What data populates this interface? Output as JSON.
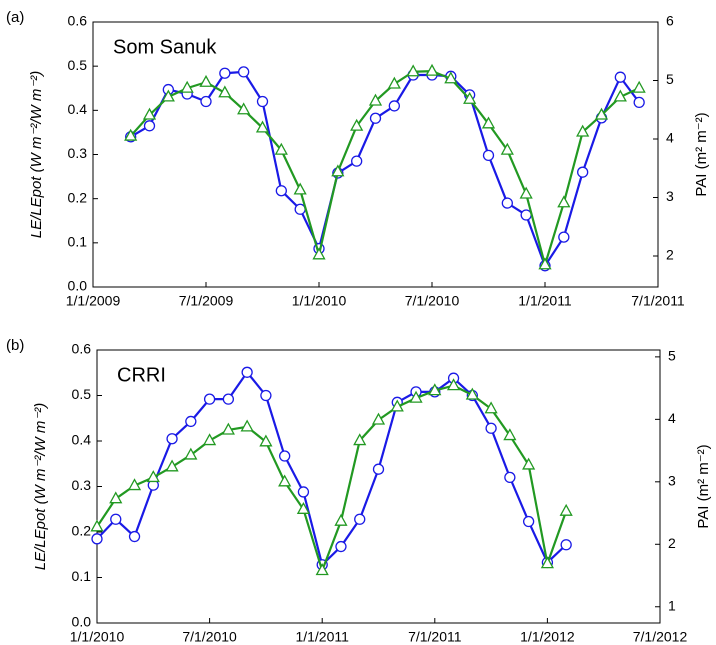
{
  "chart_data": [
    {
      "type": "line",
      "panel_label": "(a)",
      "annotation": "Som Sanuk",
      "y_label": "LE/LEpot (W m⁻²/W m⁻²)",
      "y2_label": "PAI (m² m⁻²)",
      "x": [
        "3/1/2009",
        "4/1/2009",
        "5/1/2009",
        "6/1/2009",
        "7/1/2009",
        "8/1/2009",
        "9/1/2009",
        "10/1/2009",
        "11/1/2009",
        "12/1/2009",
        "1/1/2010",
        "2/1/2010",
        "3/1/2010",
        "4/1/2010",
        "5/1/2010",
        "6/1/2010",
        "7/1/2010",
        "8/1/2010",
        "9/1/2010",
        "10/1/2010",
        "11/1/2010",
        "12/1/2010",
        "1/1/2011",
        "2/1/2011",
        "3/1/2011",
        "4/1/2011",
        "5/1/2011",
        "6/1/2011"
      ],
      "xlim": [
        "1/1/2009",
        "7/1/2011"
      ],
      "xticks": [
        "1/1/2009",
        "7/1/2009",
        "1/1/2010",
        "7/1/2010",
        "1/1/2011",
        "7/1/2011"
      ],
      "ylim": [
        0,
        0.6
      ],
      "yticks": [
        {
          "value": 0,
          "label": "0.0"
        },
        0.1,
        0.2,
        0.3,
        0.4,
        0.5,
        0.6
      ],
      "y2lim": [
        1.47,
        6
      ],
      "y2ticks": [
        2,
        3,
        4,
        5,
        6
      ],
      "series": [
        {
          "color": "#1a1ae6",
          "marker": "circle",
          "values": [
            0.34,
            0.365,
            0.447,
            0.437,
            0.42,
            0.484,
            0.487,
            0.42,
            0.218,
            0.176,
            0.087,
            0.258,
            0.285,
            0.382,
            0.41,
            0.48,
            0.48,
            0.477,
            0.435,
            0.298,
            0.19,
            0.163,
            0.048,
            0.113,
            0.26,
            0.383,
            0.475,
            0.418
          ]
        },
        {
          "color": "#229922",
          "marker": "triangle",
          "axis": "y2",
          "values": [
            4.05,
            4.41,
            4.72,
            4.87,
            4.97,
            4.79,
            4.5,
            4.19,
            3.81,
            3.13,
            2.02,
            3.44,
            4.22,
            4.65,
            4.94,
            5.15,
            5.16,
            5.03,
            4.68,
            4.26,
            3.81,
            3.06,
            1.85,
            2.91,
            4.12,
            4.41,
            4.72,
            4.87
          ]
        }
      ]
    },
    {
      "type": "line",
      "panel_label": "(b)",
      "annotation": "CRRI",
      "y_label": "LE/LEpot (W m⁻²/W m⁻²)",
      "y2_label": "PAI (m² m⁻²)",
      "x": [
        "1/1/2010",
        "2/1/2010",
        "3/1/2010",
        "4/1/2010",
        "5/1/2010",
        "6/1/2010",
        "7/1/2010",
        "8/1/2010",
        "9/1/2010",
        "10/1/2010",
        "11/1/2010",
        "12/1/2010",
        "1/1/2011",
        "2/1/2011",
        "3/1/2011",
        "4/1/2011",
        "5/1/2011",
        "6/1/2011",
        "7/1/2011",
        "8/1/2011",
        "9/1/2011",
        "10/1/2011",
        "11/1/2011",
        "12/1/2011",
        "1/1/2012",
        "2/1/2012"
      ],
      "xlim": [
        "1/1/2010",
        "7/1/2012"
      ],
      "xticks": [
        "1/1/2010",
        "7/1/2010",
        "1/1/2011",
        "7/1/2011",
        "1/1/2012",
        "7/1/2012"
      ],
      "ylim": [
        0,
        0.6
      ],
      "yticks": [
        {
          "value": 0,
          "label": "0.0"
        },
        0.1,
        0.2,
        0.3,
        0.4,
        0.5,
        0.6
      ],
      "y2lim": [
        0.74,
        5.11
      ],
      "y2ticks": [
        1,
        2,
        3,
        4,
        5
      ],
      "series": [
        {
          "color": "#1a1ae6",
          "marker": "circle",
          "values": [
            0.185,
            0.228,
            0.19,
            0.303,
            0.405,
            0.443,
            0.492,
            0.492,
            0.551,
            0.5,
            0.367,
            0.288,
            0.128,
            0.168,
            0.228,
            0.338,
            0.485,
            0.508,
            0.508,
            0.538,
            0.5,
            0.428,
            0.32,
            0.223,
            0.133,
            0.172
          ]
        },
        {
          "color": "#229922",
          "marker": "triangle",
          "axis": "y2",
          "values": [
            2.28,
            2.73,
            2.94,
            3.07,
            3.24,
            3.43,
            3.66,
            3.83,
            3.88,
            3.64,
            3.0,
            2.56,
            1.58,
            2.37,
            3.66,
            3.99,
            4.2,
            4.34,
            4.46,
            4.54,
            4.39,
            4.17,
            3.74,
            3.27,
            1.69,
            2.53
          ]
        }
      ]
    }
  ]
}
